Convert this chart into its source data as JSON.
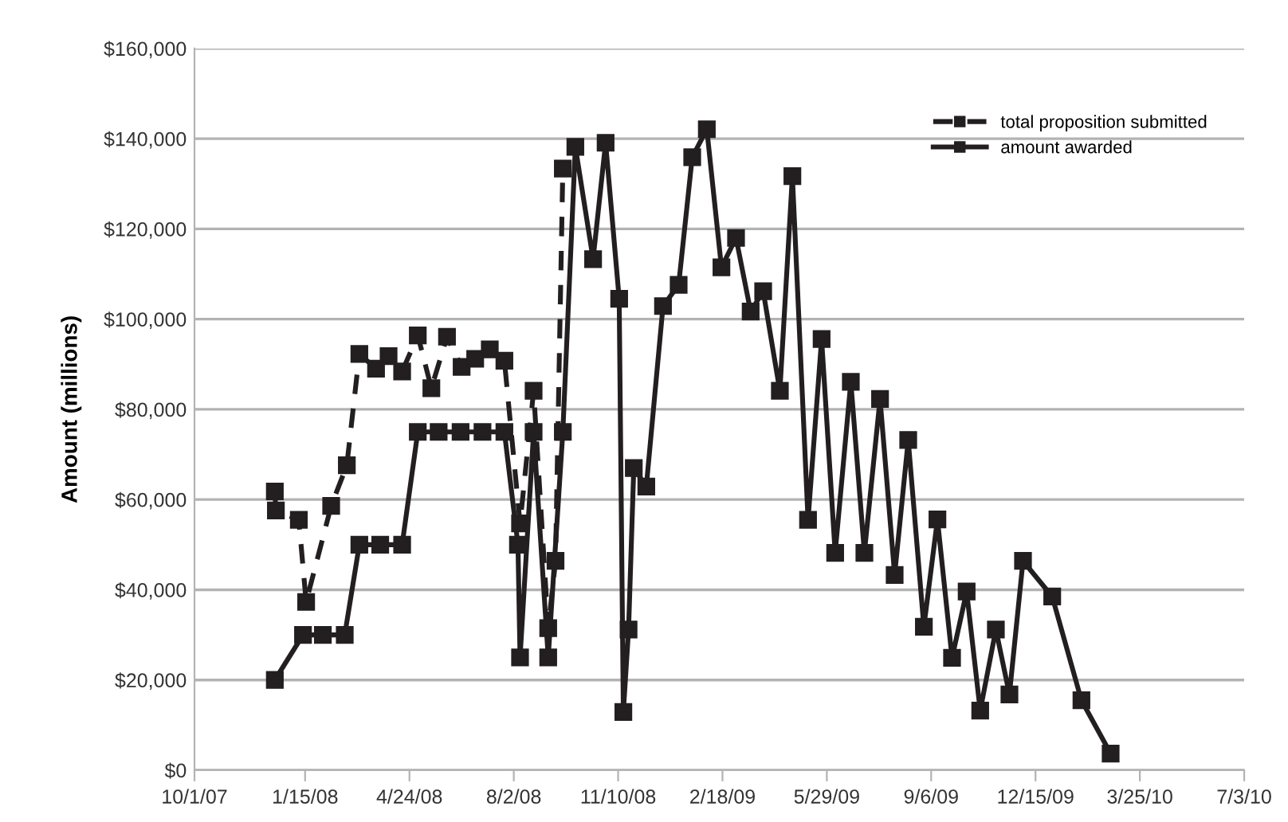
{
  "chart_data": {
    "type": "line",
    "ylabel": "Amount (millions)",
    "xlim": [
      "2007-10-01",
      "2010-07-03"
    ],
    "xticks": [
      {
        "value": "2007-10-01",
        "label": "10/1/07"
      },
      {
        "value": "2008-01-15",
        "label": "1/15/08"
      },
      {
        "value": "2008-04-24",
        "label": "4/24/08"
      },
      {
        "value": "2008-08-02",
        "label": "8/2/08"
      },
      {
        "value": "2008-11-10",
        "label": "11/10/08"
      },
      {
        "value": "2009-02-18",
        "label": "2/18/09"
      },
      {
        "value": "2009-05-29",
        "label": "5/29/09"
      },
      {
        "value": "2009-09-06",
        "label": "9/6/09"
      },
      {
        "value": "2009-12-15",
        "label": "12/15/09"
      },
      {
        "value": "2010-03-25",
        "label": "3/25/10"
      },
      {
        "value": "2010-07-03",
        "label": "7/3/10"
      }
    ],
    "ylim": [
      0,
      160000
    ],
    "yticks": [
      {
        "value": 0,
        "label": "$0"
      },
      {
        "value": 20000,
        "label": "$20,000"
      },
      {
        "value": 40000,
        "label": "$40,000"
      },
      {
        "value": 60000,
        "label": "$60,000"
      },
      {
        "value": 80000,
        "label": "$80,000"
      },
      {
        "value": 100000,
        "label": "$100,000"
      },
      {
        "value": 120000,
        "label": "$120,000"
      },
      {
        "value": 140000,
        "label": "$140,000"
      },
      {
        "value": 160000,
        "label": "$160,000"
      }
    ],
    "grid": "y",
    "legend": "top right",
    "marker": "square",
    "series": [
      {
        "name": "total proposition submitted",
        "color": "#231f20",
        "line_style": "dashed",
        "x": [
          "2007-12-17",
          "2007-12-18",
          "2008-01-09",
          "2008-01-16",
          "2008-02-09",
          "2008-02-24",
          "2008-03-07",
          "2008-03-23",
          "2008-04-04",
          "2008-04-17",
          "2008-05-02",
          "2008-05-15",
          "2008-05-30",
          "2008-06-13",
          "2008-06-26",
          "2008-07-10",
          "2008-07-24",
          "2008-08-08",
          "2008-08-21",
          "2008-09-04",
          "2008-09-11",
          "2008-09-18"
        ],
        "values": [
          61800,
          57600,
          55500,
          37300,
          58600,
          67600,
          92300,
          89000,
          91800,
          88400,
          96400,
          84700,
          96100,
          89400,
          91200,
          93300,
          90800,
          54700,
          84100,
          31500,
          46400,
          133400
        ]
      },
      {
        "name": "amount awarded",
        "color": "#231f20",
        "line_style": "solid",
        "x": [
          "2007-12-17",
          "2008-01-13",
          "2008-02-01",
          "2008-02-22",
          "2008-03-07",
          "2008-03-27",
          "2008-04-17",
          "2008-05-02",
          "2008-05-22",
          "2008-06-12",
          "2008-07-03",
          "2008-07-24",
          "2008-08-06",
          "2008-08-08",
          "2008-08-21",
          "2008-09-04",
          "2008-09-18",
          "2008-09-30",
          "2008-10-17",
          "2008-10-29",
          "2008-11-11",
          "2008-11-15",
          "2008-11-20",
          "2008-11-25",
          "2008-12-07",
          "2008-12-23",
          "2009-01-07",
          "2009-01-20",
          "2009-02-03",
          "2009-02-17",
          "2009-03-03",
          "2009-03-17",
          "2009-03-29",
          "2009-04-14",
          "2009-04-26",
          "2009-05-11",
          "2009-05-24",
          "2009-06-06",
          "2009-06-21",
          "2009-07-04",
          "2009-07-19",
          "2009-08-02",
          "2009-08-15",
          "2009-08-30",
          "2009-09-12",
          "2009-09-26",
          "2009-10-10",
          "2009-10-23",
          "2009-11-07",
          "2009-11-20",
          "2009-12-03",
          "2009-12-31",
          "2010-01-28",
          "2010-02-25"
        ],
        "values": [
          20000,
          30000,
          30000,
          30000,
          50000,
          50000,
          50000,
          75000,
          75000,
          75000,
          75000,
          75000,
          50000,
          25000,
          75000,
          25000,
          75000,
          138200,
          113300,
          139100,
          104500,
          12900,
          31200,
          67000,
          62900,
          102900,
          107600,
          135900,
          142100,
          111500,
          118000,
          101700,
          106200,
          84100,
          131700,
          55500,
          95600,
          48200,
          86100,
          48200,
          82300,
          43300,
          73200,
          31800,
          55600,
          24900,
          39600,
          13200,
          31200,
          16800,
          46400,
          38500,
          15500,
          3700
        ]
      }
    ]
  }
}
